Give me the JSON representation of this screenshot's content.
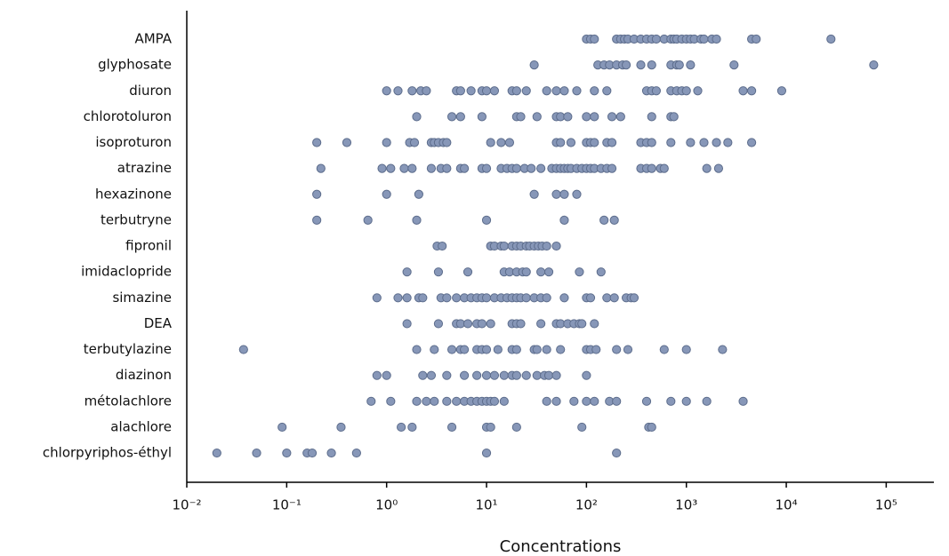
{
  "chart_data": {
    "type": "strip",
    "x_label": "Concentrations",
    "log_x": true,
    "color": "#8797b8",
    "edge_color": "#5d6d8c",
    "xlim": [
      0.01,
      300000
    ],
    "xticks": [
      {
        "value": 0.01,
        "label": "10⁻²"
      },
      {
        "value": 0.1,
        "label": "10⁻¹"
      },
      {
        "value": 1,
        "label": "10⁰"
      },
      {
        "value": 10,
        "label": "10¹"
      },
      {
        "value": 100,
        "label": "10²"
      },
      {
        "value": 1000,
        "label": "10³"
      },
      {
        "value": 10000,
        "label": "10⁴"
      },
      {
        "value": 100000,
        "label": "10⁵"
      }
    ],
    "categories": [
      "AMPA",
      "glyphosate",
      "diuron",
      "chlorotoluron",
      "isoproturon",
      "atrazine",
      "hexazinone",
      "terbutryne",
      "fipronil",
      "imidaclopride",
      "simazine",
      "DEA",
      "terbutylazine",
      "diazinon",
      "métolachlore",
      "alachlore",
      "chlorpyriphos-éthyl"
    ],
    "values": [
      [
        100,
        110,
        120,
        200,
        220,
        240,
        260,
        300,
        350,
        400,
        450,
        500,
        600,
        700,
        750,
        800,
        900,
        1000,
        1100,
        1200,
        1400,
        1500,
        1800,
        2000,
        4500,
        5000,
        28000
      ],
      [
        30,
        130,
        150,
        170,
        200,
        230,
        250,
        350,
        450,
        700,
        800,
        850,
        1100,
        3000,
        75000
      ],
      [
        1,
        1.3,
        1.8,
        2.2,
        2.5,
        5,
        5.5,
        7,
        9,
        10,
        12,
        18,
        20,
        25,
        40,
        50,
        60,
        80,
        120,
        160,
        400,
        450,
        500,
        700,
        800,
        900,
        1000,
        1300,
        3700,
        4500,
        9000
      ],
      [
        2,
        4.5,
        5.5,
        9,
        20,
        22,
        32,
        50,
        55,
        65,
        100,
        120,
        180,
        220,
        450,
        700,
        750
      ],
      [
        0.2,
        0.4,
        1,
        1.7,
        1.9,
        2.8,
        3,
        3.3,
        3.7,
        4,
        11,
        14,
        17,
        50,
        55,
        70,
        100,
        110,
        120,
        160,
        180,
        350,
        400,
        450,
        700,
        1100,
        1500,
        2000,
        2600,
        4500
      ],
      [
        0.22,
        0.9,
        1.1,
        1.5,
        1.8,
        2.8,
        3.5,
        4,
        5.5,
        6,
        9,
        10,
        14,
        16,
        18,
        20,
        24,
        28,
        35,
        45,
        50,
        55,
        60,
        65,
        70,
        80,
        90,
        100,
        110,
        120,
        140,
        160,
        180,
        350,
        400,
        450,
        550,
        600,
        1600,
        2100
      ],
      [
        0.2,
        1,
        2.1,
        30,
        50,
        60,
        80
      ],
      [
        0.2,
        0.65,
        2,
        10,
        60,
        150,
        190
      ],
      [
        3.2,
        3.6,
        11,
        12,
        14,
        15,
        18,
        20,
        22,
        25,
        27,
        30,
        33,
        36,
        40,
        50
      ],
      [
        1.6,
        3.3,
        6.5,
        15,
        17,
        20,
        23,
        25,
        35,
        42,
        85,
        140
      ],
      [
        0.8,
        1.3,
        1.6,
        2.1,
        2.3,
        3.5,
        4,
        5,
        6,
        7,
        8,
        9,
        10,
        12,
        14,
        16,
        18,
        20,
        22,
        25,
        30,
        35,
        40,
        60,
        100,
        110,
        160,
        190,
        250,
        280,
        300
      ],
      [
        1.6,
        3.3,
        5,
        5.5,
        6.5,
        8,
        9,
        11,
        18,
        20,
        22,
        35,
        50,
        55,
        65,
        75,
        85,
        90,
        120
      ],
      [
        0.037,
        2,
        3,
        4.5,
        5.5,
        6,
        8,
        9,
        10,
        13,
        18,
        20,
        30,
        32,
        40,
        55,
        100,
        110,
        125,
        200,
        260,
        600,
        1000,
        2300
      ],
      [
        0.8,
        1,
        2.3,
        2.8,
        4,
        6,
        8,
        10,
        12,
        15,
        18,
        20,
        25,
        32,
        38,
        42,
        50,
        100
      ],
      [
        0.7,
        1.1,
        2,
        2.5,
        3,
        4,
        5,
        6,
        7,
        8,
        9,
        10,
        11,
        12,
        15,
        40,
        50,
        75,
        100,
        120,
        170,
        200,
        400,
        700,
        1000,
        1600,
        3700
      ],
      [
        0.09,
        0.35,
        1.4,
        1.8,
        4.5,
        10,
        11,
        20,
        90,
        420,
        450
      ],
      [
        0.02,
        0.05,
        0.1,
        0.16,
        0.18,
        0.28,
        0.5,
        10,
        200
      ]
    ]
  }
}
